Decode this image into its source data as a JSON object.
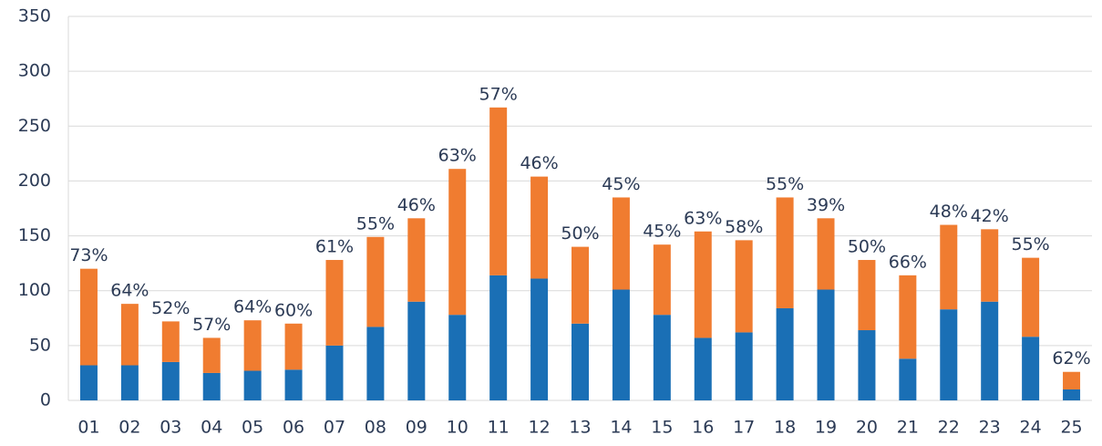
{
  "chart_data": {
    "type": "stacked_bar",
    "categories": [
      "01",
      "02",
      "03",
      "04",
      "05",
      "06",
      "07",
      "08",
      "09",
      "10",
      "11",
      "12",
      "13",
      "14",
      "15",
      "16",
      "17",
      "18",
      "19",
      "20",
      "21",
      "22",
      "23",
      "24",
      "25"
    ],
    "series": [
      {
        "color": "#1a6fb5",
        "values": [
          32,
          32,
          35,
          25,
          27,
          28,
          50,
          67,
          90,
          78,
          114,
          111,
          70,
          101,
          78,
          57,
          62,
          84,
          101,
          64,
          38,
          83,
          90,
          58,
          10
        ]
      },
      {
        "color": "#f07c30",
        "values": [
          88,
          56,
          37,
          32,
          46,
          42,
          78,
          82,
          76,
          133,
          153,
          93,
          70,
          84,
          64,
          97,
          84,
          101,
          65,
          64,
          76,
          77,
          66,
          72,
          16
        ]
      }
    ],
    "bar_labels": [
      "73%",
      "64%",
      "52%",
      "57%",
      "64%",
      "60%",
      "61%",
      "55%",
      "46%",
      "63%",
      "57%",
      "46%",
      "50%",
      "45%",
      "45%",
      "63%",
      "58%",
      "55%",
      "39%",
      "50%",
      "66%",
      "48%",
      "42%",
      "55%",
      "62%"
    ],
    "ylim": [
      0,
      350
    ],
    "yticks": [
      0,
      50,
      100,
      150,
      200,
      250,
      300,
      350
    ],
    "grid": true
  }
}
